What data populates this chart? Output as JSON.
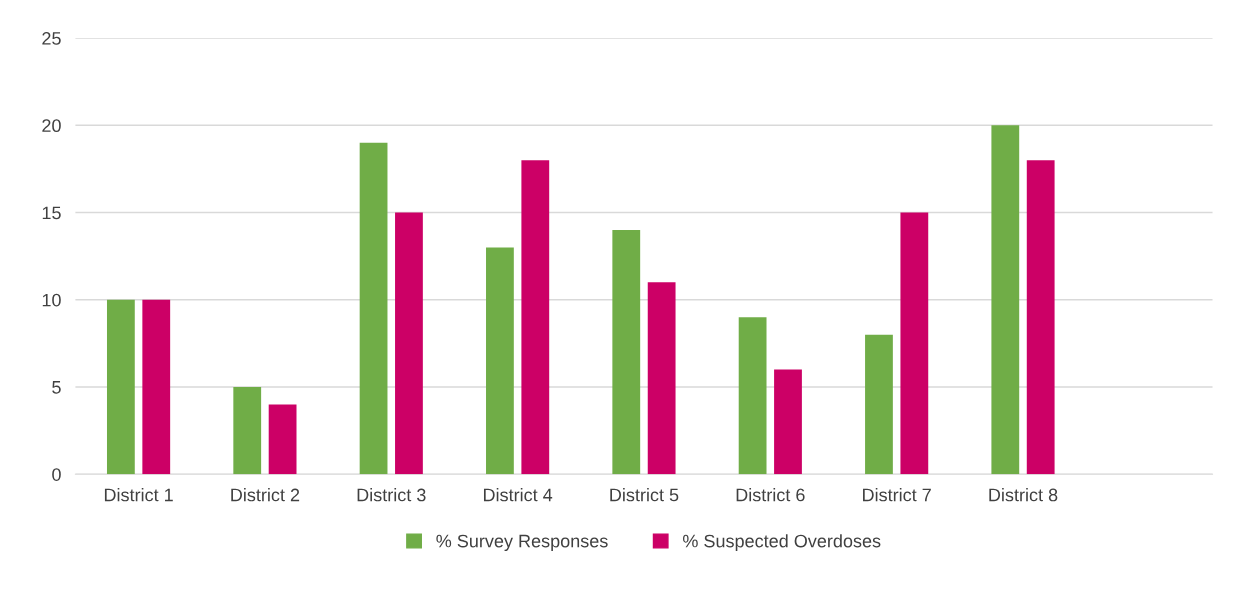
{
  "chart_data": {
    "type": "bar",
    "categories": [
      "District 1",
      "District 2",
      "District 3",
      "District 4",
      "District 5",
      "District 6",
      "District 7",
      "District 8",
      null
    ],
    "series": [
      {
        "name": "% Survey Responses",
        "color": "#70ad47",
        "values": [
          10,
          5,
          19,
          13,
          14,
          9,
          8,
          20,
          null
        ]
      },
      {
        "name": "% Suspected Overdoses",
        "color": "#cc0066",
        "values": [
          10,
          4,
          15,
          18,
          11,
          6,
          15,
          18,
          null
        ]
      }
    ],
    "ylim": [
      0,
      25
    ],
    "yticks": [
      0,
      5,
      10,
      15,
      20,
      25
    ],
    "grid": "y",
    "legend": "bottom"
  }
}
